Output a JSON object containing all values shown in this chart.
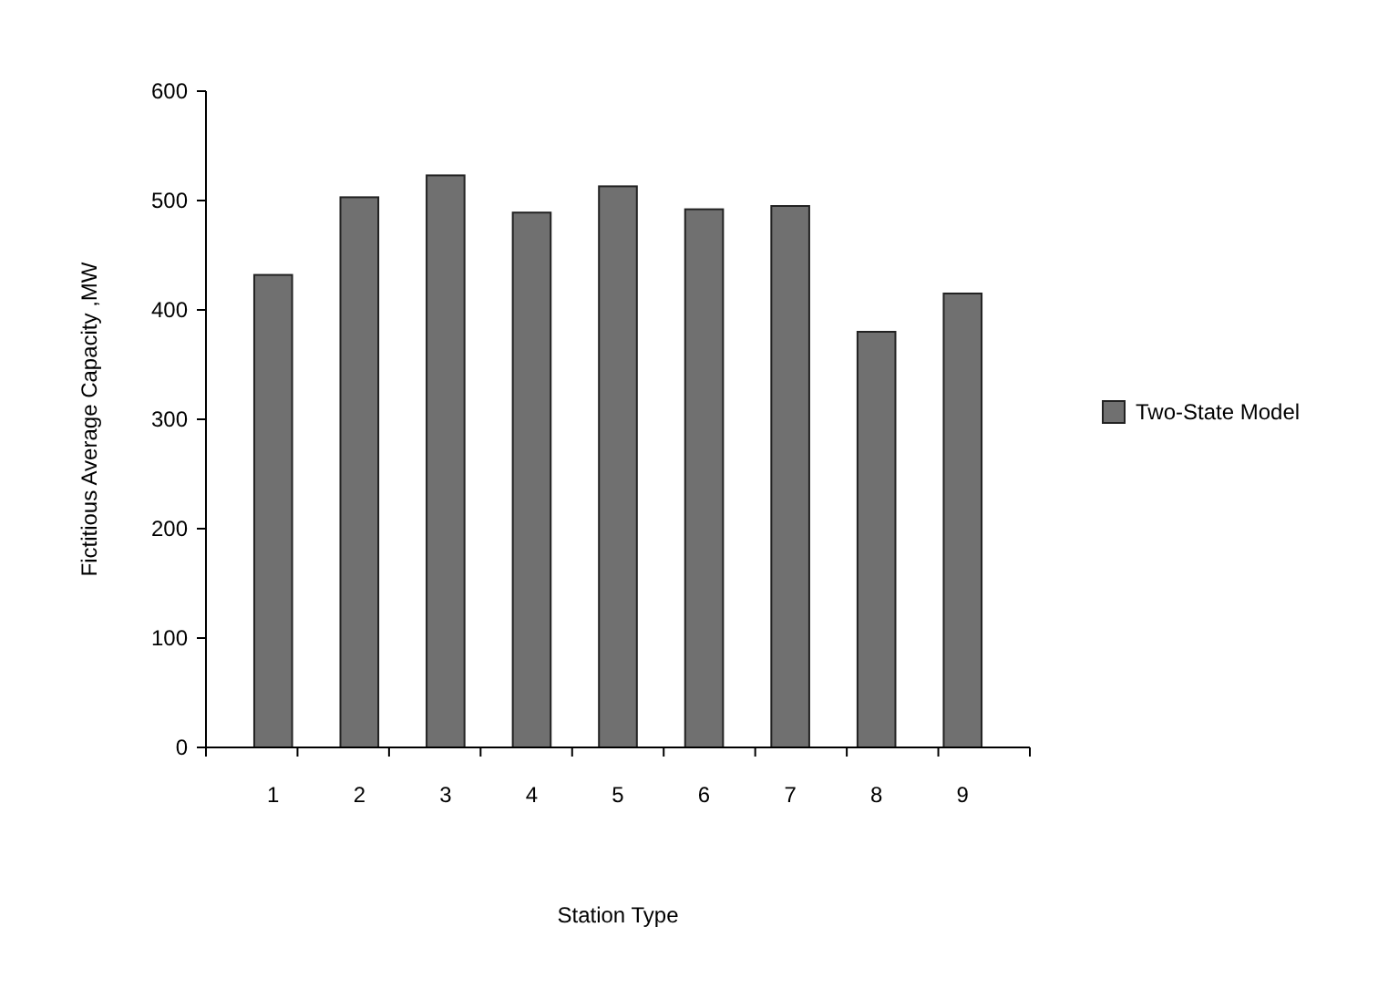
{
  "chart_data": {
    "type": "bar",
    "xlabel": "Station Type",
    "ylabel": "Fictitious Average Capacity ,MW",
    "categories": [
      "1",
      "2",
      "3",
      "4",
      "5",
      "6",
      "7",
      "8",
      "9"
    ],
    "series": [
      {
        "name": "Two-State Model",
        "color": "#707070",
        "values": [
          432,
          503,
          523,
          489,
          513,
          492,
          495,
          380,
          415
        ]
      }
    ],
    "ylim": [
      0,
      600
    ],
    "yticks": [
      0,
      100,
      200,
      300,
      400,
      500,
      600
    ],
    "grid": false,
    "legend": "right"
  }
}
